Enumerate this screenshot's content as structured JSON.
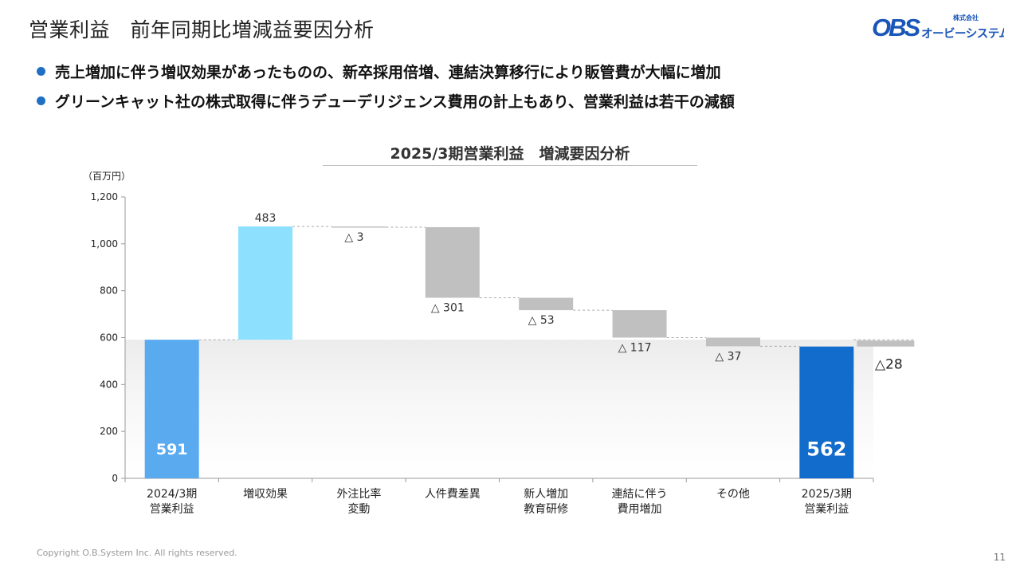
{
  "slide": {
    "title": "営業利益　前年同期比増減益要因分析",
    "bullets": [
      "売上増加に伴う増収効果があったものの、新卒採用倍増、連結決算移行により販管費が大幅に増加",
      "グリーンキャット社の株式取得に伴うデューデリジェンス費用の計上もあり、営業利益は若干の減額"
    ],
    "logo_text": "オービーシステム",
    "logo_small_text": "株式会社",
    "logo_mark": "OBS",
    "copyright": "Copyright O.B.System Inc. All rights reserved.",
    "page_number": "11"
  },
  "colors": {
    "start_bar": "#5aaaf0",
    "increase_bar": "#8ee0ff",
    "decrease_bar": "#c0c0c0",
    "end_bar": "#116ccb",
    "bullet": "#1f6fc5",
    "logo": "#1a56b8"
  },
  "chart_data": {
    "type": "waterfall",
    "title": "2025/3期営業利益　増減要因分析",
    "unit_label": "（百万円）",
    "ylim": [
      0,
      1200
    ],
    "yticks": [
      "0",
      "200",
      "400",
      "600",
      "800",
      "1,000",
      "1,200"
    ],
    "ytick_values": [
      0,
      200,
      400,
      600,
      800,
      1000,
      1200
    ],
    "grid": false,
    "categories": [
      [
        "2024/3期",
        "営業利益"
      ],
      [
        "増収効果"
      ],
      [
        "外注比率",
        "変動"
      ],
      [
        "人件費差異"
      ],
      [
        "新人増加",
        "教育研修"
      ],
      [
        "連結に伴う",
        "費用増加"
      ],
      [
        "その他"
      ],
      [
        "2025/3期",
        "営業利益"
      ]
    ],
    "items": [
      {
        "kind": "start",
        "value": 591,
        "label": "591"
      },
      {
        "kind": "increase",
        "value": 483,
        "label": "483"
      },
      {
        "kind": "decrease",
        "value": 3,
        "label": "△ 3"
      },
      {
        "kind": "decrease",
        "value": 301,
        "label": "△ 301"
      },
      {
        "kind": "decrease",
        "value": 53,
        "label": "△ 53"
      },
      {
        "kind": "decrease",
        "value": 117,
        "label": "△ 117"
      },
      {
        "kind": "decrease",
        "value": 37,
        "label": "△ 37"
      },
      {
        "kind": "end",
        "value": 562,
        "label": "562"
      }
    ],
    "net_change": {
      "value": 28,
      "label": "△28"
    }
  }
}
